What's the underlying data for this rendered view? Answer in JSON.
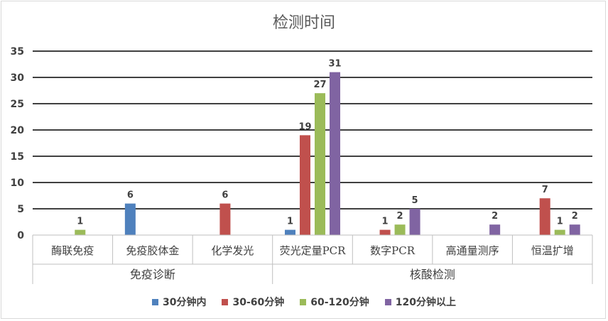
{
  "chart_data": {
    "type": "bar",
    "title": "检测时间",
    "xlabel": "",
    "ylabel": "",
    "ylim": [
      0,
      35
    ],
    "yticks": [
      0,
      5,
      10,
      15,
      20,
      25,
      30,
      35
    ],
    "grid": true,
    "legend_position": "bottom",
    "categories": [
      "酶联免疫",
      "免疫胶体金",
      "化学发光",
      "荧光定量PCR",
      "数字PCR",
      "高通量测序",
      "恒温扩增"
    ],
    "groups": [
      {
        "label": "免疫诊断",
        "categories": [
          "酶联免疫",
          "免疫胶体金",
          "化学发光"
        ]
      },
      {
        "label": "核酸检测",
        "categories": [
          "荧光定量PCR",
          "数字PCR",
          "高通量测序",
          "恒温扩增"
        ]
      }
    ],
    "series": [
      {
        "name": "30分钟内",
        "color": "#4f81bd",
        "values": [
          null,
          6,
          null,
          1,
          null,
          null,
          null
        ]
      },
      {
        "name": "30-60分钟",
        "color": "#c0504d",
        "values": [
          null,
          null,
          6,
          19,
          1,
          null,
          7
        ]
      },
      {
        "name": "60-120分钟",
        "color": "#9bbb59",
        "values": [
          1,
          null,
          null,
          27,
          2,
          null,
          1
        ]
      },
      {
        "name": "120分钟以上",
        "color": "#8064a2",
        "values": [
          null,
          null,
          null,
          31,
          5,
          2,
          2
        ]
      }
    ]
  }
}
